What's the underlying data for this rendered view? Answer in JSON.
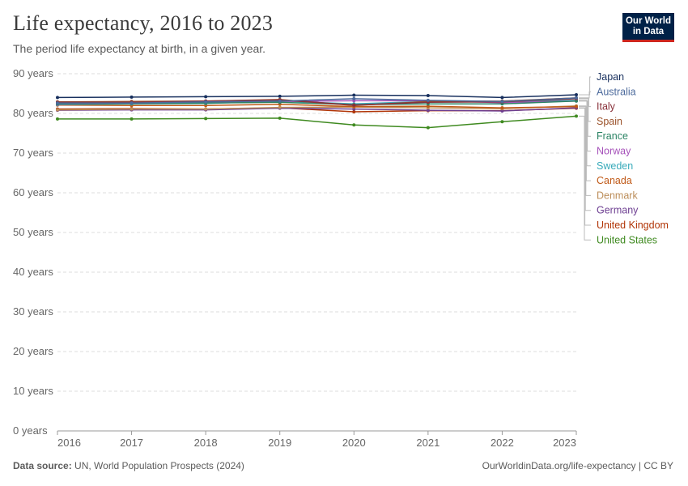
{
  "header": {
    "title": "Life expectancy, 2016 to 2023",
    "subtitle": "The period life expectancy at birth, in a given year.",
    "logo_line1": "Our World",
    "logo_line2": "in Data"
  },
  "footer": {
    "source_label": "Data source:",
    "source_text": "UN, World Population Prospects (2024)",
    "credit": "OurWorldinData.org/life-expectancy | CC BY"
  },
  "chart_data": {
    "type": "line",
    "title": "Life expectancy, 2016 to 2023",
    "xlabel": "",
    "ylabel": "",
    "x": [
      2016,
      2017,
      2018,
      2019,
      2020,
      2021,
      2022,
      2023
    ],
    "xlim": [
      2016,
      2023
    ],
    "ylim": [
      0,
      90
    ],
    "y_ticks": [
      0,
      10,
      20,
      30,
      40,
      50,
      60,
      70,
      80,
      90
    ],
    "y_tick_labels": [
      "0 years",
      "10 years",
      "20 years",
      "30 years",
      "40 years",
      "50 years",
      "60 years",
      "70 years",
      "80 years",
      "90 years"
    ],
    "x_tick_labels": [
      "2016",
      "2017",
      "2018",
      "2019",
      "2020",
      "2021",
      "2022",
      "2023"
    ],
    "grid": true,
    "legend_position": "right",
    "series": [
      {
        "name": "Japan",
        "color": "#18305e",
        "values": [
          84.0,
          84.1,
          84.2,
          84.3,
          84.6,
          84.5,
          84.0,
          84.7
        ]
      },
      {
        "name": "Australia",
        "color": "#4c6a9c",
        "values": [
          82.6,
          82.6,
          82.9,
          83.1,
          83.7,
          83.3,
          83.0,
          83.9
        ]
      },
      {
        "name": "Italy",
        "color": "#883039",
        "values": [
          82.8,
          82.8,
          83.1,
          83.4,
          82.1,
          82.8,
          82.9,
          83.7
        ]
      },
      {
        "name": "Spain",
        "color": "#9a5129",
        "values": [
          82.9,
          83.0,
          83.1,
          83.5,
          82.0,
          83.0,
          83.1,
          83.9
        ]
      },
      {
        "name": "France",
        "color": "#2c8465",
        "values": [
          82.4,
          82.5,
          82.6,
          82.8,
          82.2,
          82.4,
          82.4,
          83.1
        ]
      },
      {
        "name": "Norway",
        "color": "#a652ba",
        "values": [
          82.3,
          82.6,
          82.7,
          83.0,
          83.2,
          83.2,
          82.7,
          83.1
        ]
      },
      {
        "name": "Sweden",
        "color": "#38aaba",
        "values": [
          82.2,
          82.4,
          82.5,
          83.1,
          82.4,
          83.0,
          83.0,
          83.3
        ]
      },
      {
        "name": "Canada",
        "color": "#c05917",
        "values": [
          82.1,
          82.0,
          82.0,
          82.3,
          81.7,
          81.8,
          81.4,
          81.7
        ]
      },
      {
        "name": "Denmark",
        "color": "#bc8e5a",
        "values": [
          80.9,
          81.1,
          81.1,
          81.5,
          81.6,
          81.4,
          81.2,
          81.9
        ]
      },
      {
        "name": "Germany",
        "color": "#6d3e91",
        "values": [
          80.8,
          80.9,
          80.9,
          81.3,
          81.1,
          80.8,
          80.6,
          81.4
        ]
      },
      {
        "name": "United Kingdom",
        "color": "#b13507",
        "values": [
          81.1,
          81.2,
          81.1,
          81.4,
          80.4,
          80.7,
          80.7,
          81.3
        ]
      },
      {
        "name": "United States",
        "color": "#3f8a20",
        "values": [
          78.6,
          78.6,
          78.7,
          78.8,
          77.1,
          76.4,
          77.9,
          79.3
        ]
      }
    ]
  }
}
